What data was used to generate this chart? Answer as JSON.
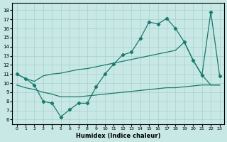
{
  "xlabel": "Humidex (Indice chaleur)",
  "background_color": "#c8e8e5",
  "grid_color": "#a8d0cc",
  "line_color": "#1a7a6e",
  "xlim": [
    -0.5,
    23.5
  ],
  "ylim": [
    5.5,
    18.8
  ],
  "yticks": [
    6,
    7,
    8,
    9,
    10,
    11,
    12,
    13,
    14,
    15,
    16,
    17,
    18
  ],
  "xticks": [
    0,
    1,
    2,
    3,
    4,
    5,
    6,
    7,
    8,
    9,
    10,
    11,
    12,
    13,
    14,
    15,
    16,
    17,
    18,
    19,
    20,
    21,
    22,
    23
  ],
  "line1_x": [
    0,
    1,
    2,
    3,
    4,
    5,
    6,
    7,
    8,
    9,
    10,
    11,
    12,
    13,
    14,
    15,
    16,
    17,
    18,
    19,
    20,
    21,
    22,
    23
  ],
  "line1_y": [
    11.0,
    10.5,
    9.8,
    8.0,
    7.8,
    6.3,
    7.1,
    7.8,
    7.8,
    9.6,
    11.0,
    12.1,
    13.1,
    13.4,
    14.9,
    16.7,
    16.5,
    17.1,
    16.0,
    14.5,
    12.5,
    10.9,
    17.8,
    10.8
  ],
  "line2_x": [
    0,
    1,
    2,
    3,
    4,
    5,
    6,
    7,
    8,
    9,
    10,
    11,
    12,
    13,
    14,
    15,
    16,
    17,
    18,
    19,
    20,
    21,
    22,
    23
  ],
  "line2_y": [
    11.0,
    10.5,
    10.2,
    10.8,
    11.0,
    11.1,
    11.3,
    11.5,
    11.6,
    11.8,
    12.0,
    12.2,
    12.4,
    12.6,
    12.8,
    13.0,
    13.2,
    13.4,
    13.6,
    14.5,
    12.5,
    10.9,
    9.8,
    9.8
  ],
  "line3_x": [
    0,
    1,
    2,
    3,
    4,
    5,
    6,
    7,
    8,
    9,
    10,
    11,
    12,
    13,
    14,
    15,
    16,
    17,
    18,
    19,
    20,
    21,
    22,
    23
  ],
  "line3_y": [
    9.8,
    9.5,
    9.3,
    9.0,
    8.8,
    8.5,
    8.5,
    8.5,
    8.6,
    8.7,
    8.8,
    8.9,
    9.0,
    9.1,
    9.2,
    9.3,
    9.4,
    9.5,
    9.5,
    9.6,
    9.7,
    9.8,
    9.8,
    9.8
  ]
}
